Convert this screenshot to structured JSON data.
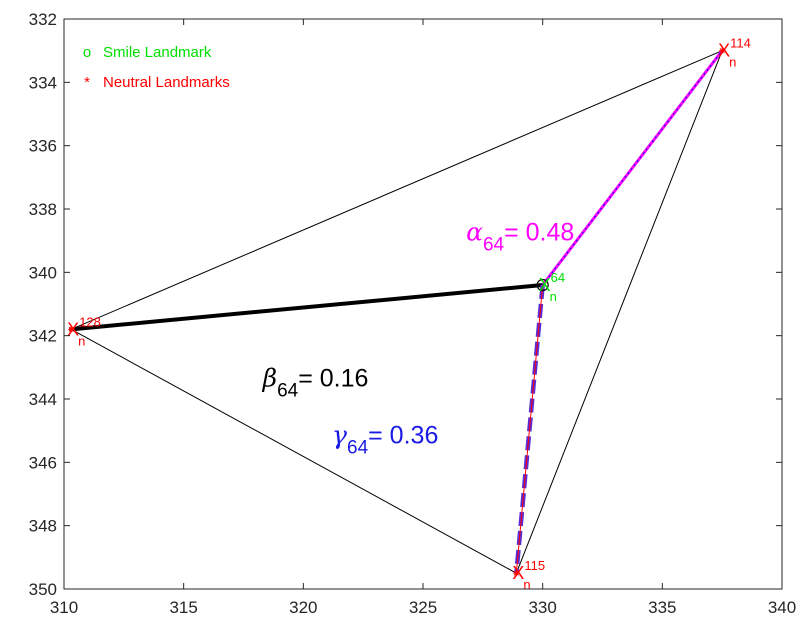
{
  "chart_data": {
    "type": "scatter",
    "title": "",
    "xlabel": "",
    "ylabel": "",
    "xlim": [
      310,
      340
    ],
    "ylim": [
      332,
      350
    ],
    "y_reversed": true,
    "grid": false,
    "legend_position": "top-left",
    "xticks": [
      "310",
      "315",
      "320",
      "325",
      "330",
      "335",
      "340"
    ],
    "yticks": [
      "332",
      "334",
      "336",
      "338",
      "340",
      "342",
      "344",
      "346",
      "348",
      "350"
    ],
    "legend": [
      {
        "marker": "o",
        "label": "Smile Landmark",
        "color": "#00e000"
      },
      {
        "marker": "*",
        "label": "Neutral Landmarks",
        "color": "#ff0000"
      }
    ],
    "series": [
      {
        "name": "Smile Landmark",
        "color": "#00e000",
        "points": [
          {
            "id": "64",
            "x": 330.0,
            "y": 340.4
          }
        ]
      },
      {
        "name": "Neutral Landmarks",
        "color": "#ff0000",
        "points": [
          {
            "id": "114",
            "x": 337.5,
            "y": 333.0
          },
          {
            "id": "128",
            "x": 310.3,
            "y": 341.8
          },
          {
            "id": "115",
            "x": 328.9,
            "y": 349.5
          }
        ]
      }
    ],
    "point_labels": [
      {
        "id": "128",
        "base": "X",
        "sub": "n",
        "sup": "128",
        "color": "#ff0000"
      },
      {
        "id": "114",
        "base": "X",
        "sub": "n",
        "sup": "114",
        "color": "#ff0000"
      },
      {
        "id": "115",
        "base": "X",
        "sub": "n",
        "sup": "115",
        "color": "#ff0000"
      },
      {
        "id": "64",
        "base": "X",
        "sub": "n",
        "sup": "64",
        "color": "#00e000"
      }
    ],
    "annotations": [
      {
        "symbol": "α",
        "sub": "64",
        "text": "= 0.48",
        "color": "#ff00ff",
        "x": 326.8,
        "y": 339.0
      },
      {
        "symbol": "β",
        "sub": "64",
        "text": "= 0.16",
        "color": "#000000",
        "x": 318.3,
        "y": 343.6
      },
      {
        "symbol": "γ",
        "sub": "64",
        "text": "= 0.36",
        "color": "#1a1ae6",
        "x": 321.2,
        "y": 345.4
      }
    ]
  }
}
